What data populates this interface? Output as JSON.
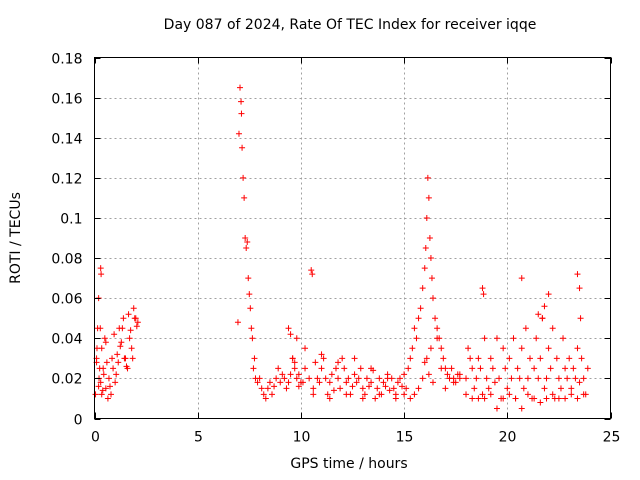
{
  "chart_data": {
    "type": "scatter",
    "title": "Day 087 of 2024, Rate Of TEC Index for receiver iqqe",
    "xlabel": "GPS time / hours",
    "ylabel": "ROTI / TECUs",
    "xlim": [
      0,
      25
    ],
    "ylim": [
      0,
      0.18
    ],
    "xticks": [
      0,
      5,
      10,
      15,
      20,
      25
    ],
    "yticks": [
      0,
      0.02,
      0.04,
      0.06,
      0.08,
      0.1,
      0.12,
      0.14,
      0.16,
      0.18
    ],
    "xtick_labels": [
      "0",
      "5",
      "10",
      "15",
      "20",
      "25"
    ],
    "ytick_labels": [
      "0",
      "0.02",
      "0.04",
      "0.06",
      "0.08",
      "0.1",
      "0.12",
      "0.14",
      "0.16",
      "0.18"
    ],
    "grid": true,
    "marker": "+",
    "color": "#ff0000",
    "series": [
      {
        "x": [
          0.05,
          0.1,
          0.15,
          0.2,
          0.25,
          0.3,
          0.35,
          0.4,
          0.45,
          0.5,
          0.55,
          0.6,
          0.7,
          0.8,
          0.9,
          1.0,
          1.1,
          1.2,
          1.3,
          1.4,
          1.5,
          1.6,
          1.7,
          1.8,
          1.9,
          2.0,
          2.1,
          0.12,
          0.22,
          0.28,
          0.35,
          0.42,
          0.55,
          0.65,
          0.75,
          0.85,
          0.95,
          1.05,
          1.15,
          1.25,
          1.35,
          1.45,
          1.55,
          1.65,
          1.75,
          1.85,
          1.95,
          2.05,
          0.3,
          0.32,
          0.1,
          0.2,
          6.95,
          7.0,
          7.05,
          7.1,
          7.12,
          7.15,
          7.2,
          7.25,
          7.3,
          7.35,
          7.4,
          7.45,
          7.5,
          7.55,
          7.6,
          7.65,
          7.7,
          7.75,
          7.8,
          7.9,
          8.0,
          8.1,
          8.2,
          8.3,
          8.4,
          8.5,
          8.6,
          8.7,
          8.8,
          8.9,
          9.0,
          9.1,
          9.2,
          9.3,
          9.4,
          9.5,
          9.6,
          9.7,
          9.8,
          9.9,
          10.0,
          9.4,
          9.5,
          9.6,
          9.7,
          9.8,
          9.9,
          10.1,
          10.2,
          10.4,
          10.5,
          10.55,
          10.6,
          10.7,
          10.8,
          10.9,
          11.0,
          11.1,
          11.2,
          11.3,
          11.4,
          11.5,
          11.6,
          11.7,
          11.8,
          11.9,
          12.0,
          12.1,
          12.2,
          12.3,
          12.4,
          12.5,
          12.6,
          12.7,
          12.8,
          12.9,
          13.0,
          13.1,
          13.2,
          13.3,
          13.4,
          13.5,
          13.6,
          13.7,
          13.8,
          13.9,
          14.0,
          14.1,
          14.2,
          14.3,
          14.4,
          14.5,
          14.6,
          14.7,
          14.8,
          14.9,
          15.0,
          10.2,
          10.6,
          11.0,
          11.4,
          11.8,
          12.2,
          12.6,
          13.0,
          13.4,
          13.8,
          14.2,
          14.6,
          15.0,
          15.1,
          15.2,
          15.3,
          15.4,
          15.5,
          15.6,
          15.7,
          15.8,
          15.9,
          16.0,
          16.05,
          16.1,
          16.15,
          16.2,
          16.25,
          16.3,
          16.35,
          16.4,
          16.5,
          16.6,
          16.7,
          16.8,
          16.9,
          17.0,
          17.1,
          17.2,
          17.3,
          17.4,
          17.5,
          17.6,
          17.7,
          15.3,
          15.5,
          15.7,
          15.9,
          16.0,
          16.1,
          16.2,
          16.3,
          16.4,
          16.6,
          16.8,
          17.0,
          17.2,
          17.4,
          17.7,
          18.0,
          18.1,
          18.2,
          18.3,
          18.4,
          18.5,
          18.6,
          18.7,
          18.8,
          18.9,
          19.0,
          19.1,
          19.2,
          19.3,
          19.4,
          19.5,
          19.6,
          19.7,
          19.8,
          19.9,
          20.0,
          20.1,
          20.2,
          20.3,
          20.4,
          20.5,
          20.6,
          20.7,
          20.8,
          20.9,
          21.0,
          21.1,
          21.2,
          21.3,
          21.4,
          21.5,
          21.6,
          21.7,
          21.8,
          21.9,
          22.0,
          22.1,
          22.2,
          22.3,
          22.4,
          22.5,
          22.6,
          22.7,
          22.8,
          22.9,
          23.0,
          23.1,
          23.2,
          23.3,
          23.4,
          23.5,
          23.6,
          23.7,
          23.8,
          23.9,
          18.0,
          18.3,
          18.6,
          18.9,
          19.2,
          19.5,
          19.8,
          20.1,
          20.4,
          20.7,
          21.0,
          21.3,
          21.6,
          21.9,
          22.2,
          22.5,
          22.8,
          23.1,
          23.4,
          23.7,
          18.8,
          18.85,
          20.7,
          21.5,
          21.7,
          21.8,
          22.0,
          23.4,
          23.5,
          23.55
        ],
        "y": [
          0.012,
          0.03,
          0.045,
          0.06,
          0.025,
          0.018,
          0.035,
          0.014,
          0.022,
          0.04,
          0.015,
          0.028,
          0.02,
          0.012,
          0.025,
          0.018,
          0.032,
          0.045,
          0.038,
          0.05,
          0.03,
          0.025,
          0.04,
          0.035,
          0.055,
          0.05,
          0.048,
          0.035,
          0.02,
          0.045,
          0.012,
          0.025,
          0.038,
          0.01,
          0.016,
          0.03,
          0.042,
          0.022,
          0.028,
          0.036,
          0.045,
          0.03,
          0.026,
          0.052,
          0.044,
          0.03,
          0.05,
          0.046,
          0.075,
          0.072,
          0.028,
          0.016,
          0.048,
          0.142,
          0.165,
          0.158,
          0.152,
          0.135,
          0.12,
          0.11,
          0.09,
          0.085,
          0.088,
          0.07,
          0.062,
          0.055,
          0.045,
          0.04,
          0.025,
          0.03,
          0.02,
          0.018,
          0.02,
          0.015,
          0.012,
          0.01,
          0.015,
          0.018,
          0.012,
          0.016,
          0.02,
          0.025,
          0.018,
          0.022,
          0.02,
          0.015,
          0.018,
          0.022,
          0.03,
          0.025,
          0.02,
          0.016,
          0.018,
          0.045,
          0.042,
          0.03,
          0.028,
          0.04,
          0.022,
          0.018,
          0.025,
          0.02,
          0.074,
          0.072,
          0.015,
          0.028,
          0.02,
          0.018,
          0.025,
          0.03,
          0.02,
          0.012,
          0.018,
          0.022,
          0.014,
          0.025,
          0.02,
          0.015,
          0.03,
          0.025,
          0.018,
          0.02,
          0.012,
          0.016,
          0.022,
          0.018,
          0.02,
          0.025,
          0.015,
          0.012,
          0.02,
          0.016,
          0.018,
          0.024,
          0.01,
          0.015,
          0.02,
          0.012,
          0.018,
          0.016,
          0.022,
          0.014,
          0.02,
          0.015,
          0.012,
          0.018,
          0.02,
          0.016,
          0.022,
          0.035,
          0.012,
          0.032,
          0.01,
          0.028,
          0.012,
          0.03,
          0.01,
          0.025,
          0.012,
          0.02,
          0.01,
          0.012,
          0.015,
          0.025,
          0.03,
          0.035,
          0.045,
          0.04,
          0.05,
          0.055,
          0.065,
          0.075,
          0.085,
          0.1,
          0.12,
          0.11,
          0.09,
          0.08,
          0.07,
          0.06,
          0.05,
          0.045,
          0.04,
          0.035,
          0.03,
          0.025,
          0.022,
          0.02,
          0.025,
          0.02,
          0.018,
          0.022,
          0.02,
          0.01,
          0.012,
          0.015,
          0.02,
          0.028,
          0.03,
          0.022,
          0.035,
          0.018,
          0.04,
          0.025,
          0.015,
          0.02,
          0.018,
          0.022,
          0.02,
          0.035,
          0.03,
          0.025,
          0.015,
          0.02,
          0.03,
          0.025,
          0.012,
          0.04,
          0.02,
          0.015,
          0.03,
          0.025,
          0.018,
          0.04,
          0.02,
          0.01,
          0.035,
          0.025,
          0.015,
          0.03,
          0.02,
          0.04,
          0.01,
          0.025,
          0.02,
          0.035,
          0.015,
          0.045,
          0.02,
          0.03,
          0.01,
          0.025,
          0.04,
          0.02,
          0.03,
          0.05,
          0.015,
          0.02,
          0.035,
          0.025,
          0.045,
          0.01,
          0.03,
          0.02,
          0.015,
          0.04,
          0.025,
          0.02,
          0.03,
          0.015,
          0.025,
          0.02,
          0.035,
          0.018,
          0.03,
          0.02,
          0.012,
          0.025,
          0.012,
          0.01,
          0.01,
          0.01,
          0.012,
          0.005,
          0.01,
          0.012,
          0.01,
          0.005,
          0.012,
          0.01,
          0.008,
          0.01,
          0.012,
          0.01,
          0.01,
          0.012,
          0.01,
          0.012,
          0.065,
          0.062,
          0.07,
          0.052,
          0.05,
          0.056,
          0.062,
          0.072,
          0.065,
          0.05
        ]
      }
    ]
  }
}
